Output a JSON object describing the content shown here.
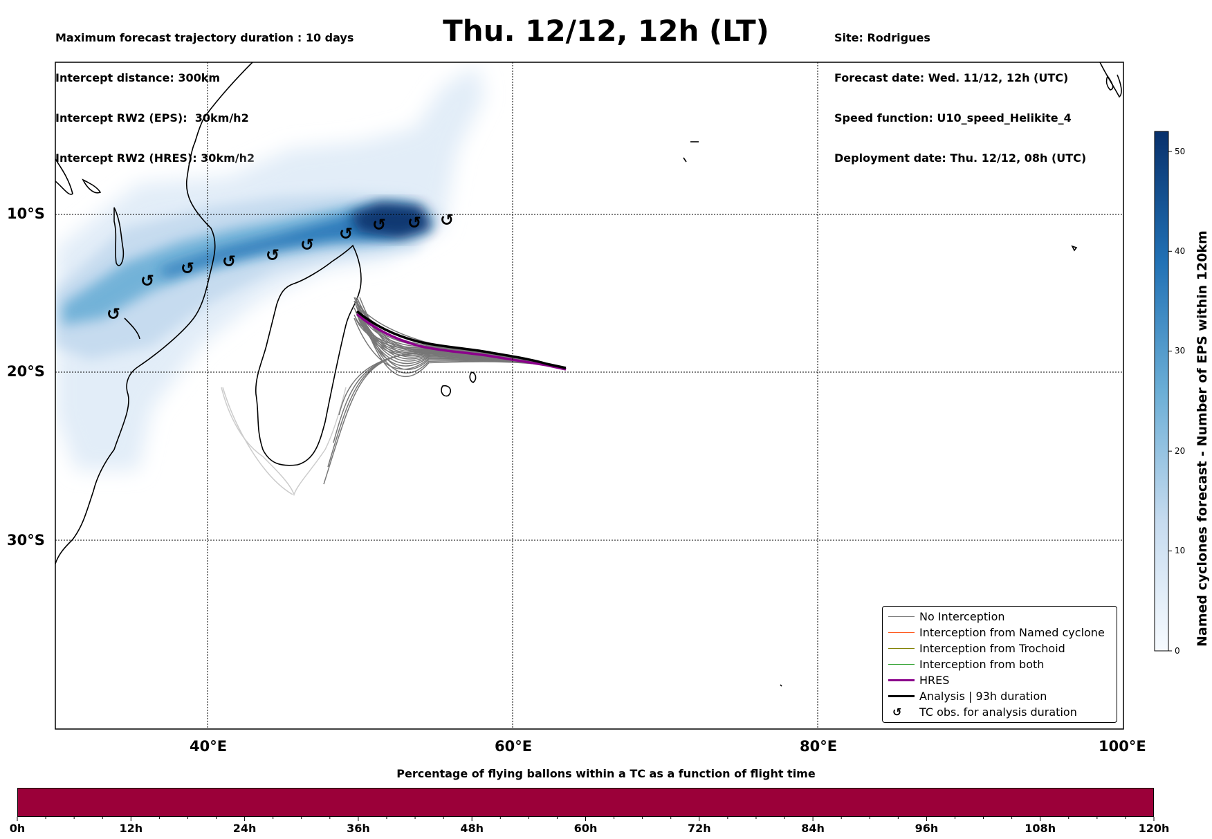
{
  "header": {
    "left": [
      "Maximum forecast trajectory duration : 10 days",
      "Intercept distance: 300km",
      "Intercept RW2 (EPS):  30km/h2",
      "Intercept RW2 (HRES): 30km/h2"
    ],
    "title": "Thu. 12/12, 12h (LT)",
    "right": [
      "Site: Rodrigues",
      "Forecast date: Wed. 11/12, 12h (UTC)",
      "Speed function: U10_speed_Helikite_4",
      "Deployment date: Thu. 12/12, 08h (UTC)"
    ]
  },
  "map": {
    "lon_labels": [
      "40°E",
      "60°E",
      "80°E",
      "100°E"
    ],
    "lat_labels": [
      "10°S",
      "20°S",
      "30°S"
    ],
    "lon_values": [
      40,
      60,
      80,
      100
    ],
    "lat_values": [
      -10,
      -20,
      -30
    ]
  },
  "colorbar": {
    "title": "Named cyclones forecast - Number of EPS within 120km",
    "ticks": [
      "0",
      "10",
      "20",
      "30",
      "40",
      "50"
    ],
    "tick_values": [
      0,
      10,
      20,
      30,
      40,
      50
    ],
    "range": [
      0,
      52
    ],
    "colormap": "Blues"
  },
  "legend": {
    "items": [
      {
        "label": "No Interception",
        "color": "#777777"
      },
      {
        "label": "Interception from Named cyclone",
        "color": "#ff5a1f"
      },
      {
        "label": "Interception from Trochoid",
        "color": "#808000"
      },
      {
        "label": "Interception from both",
        "color": "#2ca02c"
      },
      {
        "label": "HRES",
        "color": "#8b008b"
      },
      {
        "label": "Analysis | 93h duration",
        "color": "#000000"
      },
      {
        "label": "TC obs. for analysis duration",
        "symbol": "↺"
      }
    ]
  },
  "tc_symbol": "↺",
  "bottom": {
    "title": "Percentage of flying ballons within a TC as a function of flight time",
    "bar_color": "#9b0039",
    "ticks": [
      "0h",
      "12h",
      "24h",
      "36h",
      "48h",
      "60h",
      "72h",
      "84h",
      "96h",
      "108h",
      "120h"
    ]
  }
}
